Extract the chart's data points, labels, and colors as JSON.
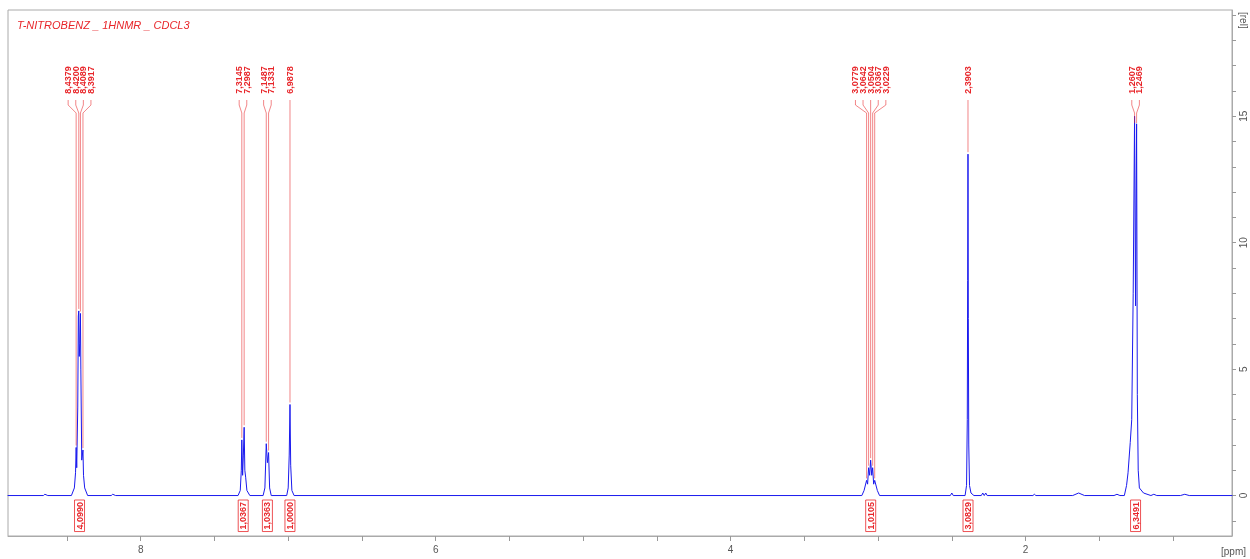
{
  "chart_data": {
    "type": "line",
    "title": "T-NITROBENZ _ 1HNMR _ CDCL3",
    "xlabel": "[ppm]",
    "ylabel": "[rel]",
    "xlim": [
      8.9,
      0.6
    ],
    "ylim": [
      -1.6,
      19.2
    ],
    "xticks": [
      {
        "value": 8.5,
        "label": null
      },
      8,
      {
        "value": 7.5,
        "label": null
      },
      {
        "value": 7,
        "label": null
      },
      {
        "value": 6.5,
        "label": null
      },
      6,
      {
        "value": 5.5,
        "label": null
      },
      {
        "value": 5,
        "label": null
      },
      {
        "value": 4.5,
        "label": null
      },
      4,
      {
        "value": 3.5,
        "label": null
      },
      {
        "value": 3,
        "label": null
      },
      {
        "value": 2.5,
        "label": null
      },
      2,
      {
        "value": 1.5,
        "label": null
      },
      {
        "value": 1,
        "label": null
      }
    ],
    "yticks": [
      {
        "value": -1,
        "label": null
      },
      0,
      {
        "value": 1,
        "label": null
      },
      {
        "value": 2,
        "label": null
      },
      {
        "value": 3,
        "label": null
      },
      {
        "value": 4,
        "label": null
      },
      5,
      {
        "value": 6,
        "label": null
      },
      {
        "value": 7,
        "label": null
      },
      {
        "value": 8,
        "label": null
      },
      {
        "value": 9,
        "label": null
      },
      10,
      {
        "value": 11,
        "label": null
      },
      {
        "value": 12,
        "label": null
      },
      {
        "value": 13,
        "label": null
      },
      {
        "value": 14,
        "label": null
      },
      15,
      {
        "value": 16,
        "label": null
      },
      {
        "value": 17,
        "label": null
      },
      {
        "value": 18,
        "label": null
      },
      {
        "value": 19,
        "label": null
      }
    ],
    "grid": false,
    "marker": "none",
    "line_style": "solid",
    "series": [
      {
        "color": "#1a1aee",
        "x": [
          8.9,
          8.66,
          8.65,
          8.63,
          8.47,
          8.45,
          8.442,
          8.4379,
          8.434,
          8.427,
          8.423,
          8.42,
          8.417,
          8.413,
          8.4089,
          8.406,
          8.4,
          8.3917,
          8.388,
          8.38,
          8.36,
          8.2,
          8.19,
          8.17,
          7.34,
          7.325,
          7.318,
          7.3145,
          7.309,
          7.304,
          7.2987,
          7.294,
          7.288,
          7.28,
          7.26,
          7.17,
          7.158,
          7.1487,
          7.141,
          7.1331,
          7.126,
          7.115,
          7.01,
          7.0,
          6.993,
          6.9878,
          6.983,
          6.975,
          6.96,
          3.11,
          3.095,
          3.0779,
          3.071,
          3.0642,
          3.057,
          3.0504,
          3.043,
          3.0367,
          3.03,
          3.0229,
          3.005,
          2.99,
          2.51,
          2.5,
          2.49,
          2.41,
          2.4,
          2.395,
          2.3925,
          2.3903,
          2.388,
          2.385,
          2.38,
          2.37,
          2.35,
          2.3,
          2.29,
          2.28,
          2.27,
          2.26,
          1.95,
          1.94,
          1.93,
          1.68,
          1.64,
          1.6,
          1.4,
          1.38,
          1.36,
          1.33,
          1.315,
          1.305,
          1.29,
          1.28,
          1.27,
          1.2607,
          1.254,
          1.2469,
          1.242,
          1.236,
          1.228,
          1.2,
          1.15,
          1.13,
          1.11,
          0.95,
          0.92,
          0.89,
          0.6
        ],
        "values": [
          0,
          0,
          0.05,
          0,
          0,
          0.3,
          0.9,
          1.9,
          1.1,
          3.5,
          7.1,
          7.3,
          5.5,
          6.0,
          7.2,
          5.0,
          1.4,
          1.8,
          0.8,
          0.3,
          0,
          0,
          0.05,
          0,
          0,
          0.2,
          1.0,
          2.2,
          0.8,
          1.6,
          2.7,
          1.0,
          0.7,
          0.2,
          0,
          0,
          0.3,
          2.05,
          1.3,
          1.7,
          0.3,
          0,
          0,
          0.3,
          1.6,
          3.6,
          1.2,
          0.2,
          0,
          0,
          0.2,
          0.6,
          0.45,
          1.1,
          0.8,
          1.4,
          0.8,
          1.1,
          0.45,
          0.6,
          0.2,
          0,
          0,
          0.1,
          0,
          0,
          0.4,
          3.0,
          8.5,
          13.5,
          7.0,
          2.0,
          0.4,
          0.1,
          0,
          0,
          0.1,
          0,
          0.1,
          0,
          0,
          0.05,
          0,
          0,
          0.1,
          0,
          0,
          0.05,
          0,
          0,
          0.4,
          0.9,
          2.1,
          3.0,
          8.0,
          15.0,
          7.5,
          14.7,
          4.0,
          1.0,
          0.3,
          0.1,
          0,
          0.05,
          0,
          0,
          0.05,
          0,
          0
        ]
      }
    ],
    "annotations": [
      {
        "text": "8,4379",
        "x": 8.4379,
        "y": 1.9
      },
      {
        "text": "8,4200",
        "x": 8.42,
        "y": 7.3
      },
      {
        "text": "8,4089",
        "x": 8.4089,
        "y": 7.2
      },
      {
        "text": "8,3917",
        "x": 8.3917,
        "y": 1.8
      },
      {
        "text": "7,3145",
        "x": 7.3145,
        "y": 2.2
      },
      {
        "text": "7,2987",
        "x": 7.2987,
        "y": 2.7
      },
      {
        "text": "7,1487",
        "x": 7.1487,
        "y": 2.05
      },
      {
        "text": "7,1331",
        "x": 7.1331,
        "y": 1.7
      },
      {
        "text": "6,9878",
        "x": 6.9878,
        "y": 3.6
      },
      {
        "text": "3,0779",
        "x": 3.0779,
        "y": 0.6
      },
      {
        "text": "3,0642",
        "x": 3.0642,
        "y": 1.1
      },
      {
        "text": "3,0504",
        "x": 3.0504,
        "y": 1.4
      },
      {
        "text": "3,0367",
        "x": 3.0367,
        "y": 1.1
      },
      {
        "text": "3,0229",
        "x": 3.0229,
        "y": 0.6
      },
      {
        "text": "2,3903",
        "x": 2.3903,
        "y": 13.5
      },
      {
        "text": "1,2607",
        "x": 1.2607,
        "y": 15.0
      },
      {
        "text": "1,2469",
        "x": 1.2469,
        "y": 14.7
      },
      {
        "text": "4,0990",
        "x": 8.415,
        "y": -0.8
      },
      {
        "text": "1,0367",
        "x": 7.305,
        "y": -0.8
      },
      {
        "text": "1,0363",
        "x": 7.141,
        "y": -0.8
      },
      {
        "text": "1,0000",
        "x": 6.988,
        "y": -0.8
      },
      {
        "text": "1,0105",
        "x": 3.05,
        "y": -0.8
      },
      {
        "text": "3,0829",
        "x": 2.39,
        "y": -0.8
      },
      {
        "text": "6,3491",
        "x": 1.254,
        "y": -0.8
      }
    ]
  }
}
